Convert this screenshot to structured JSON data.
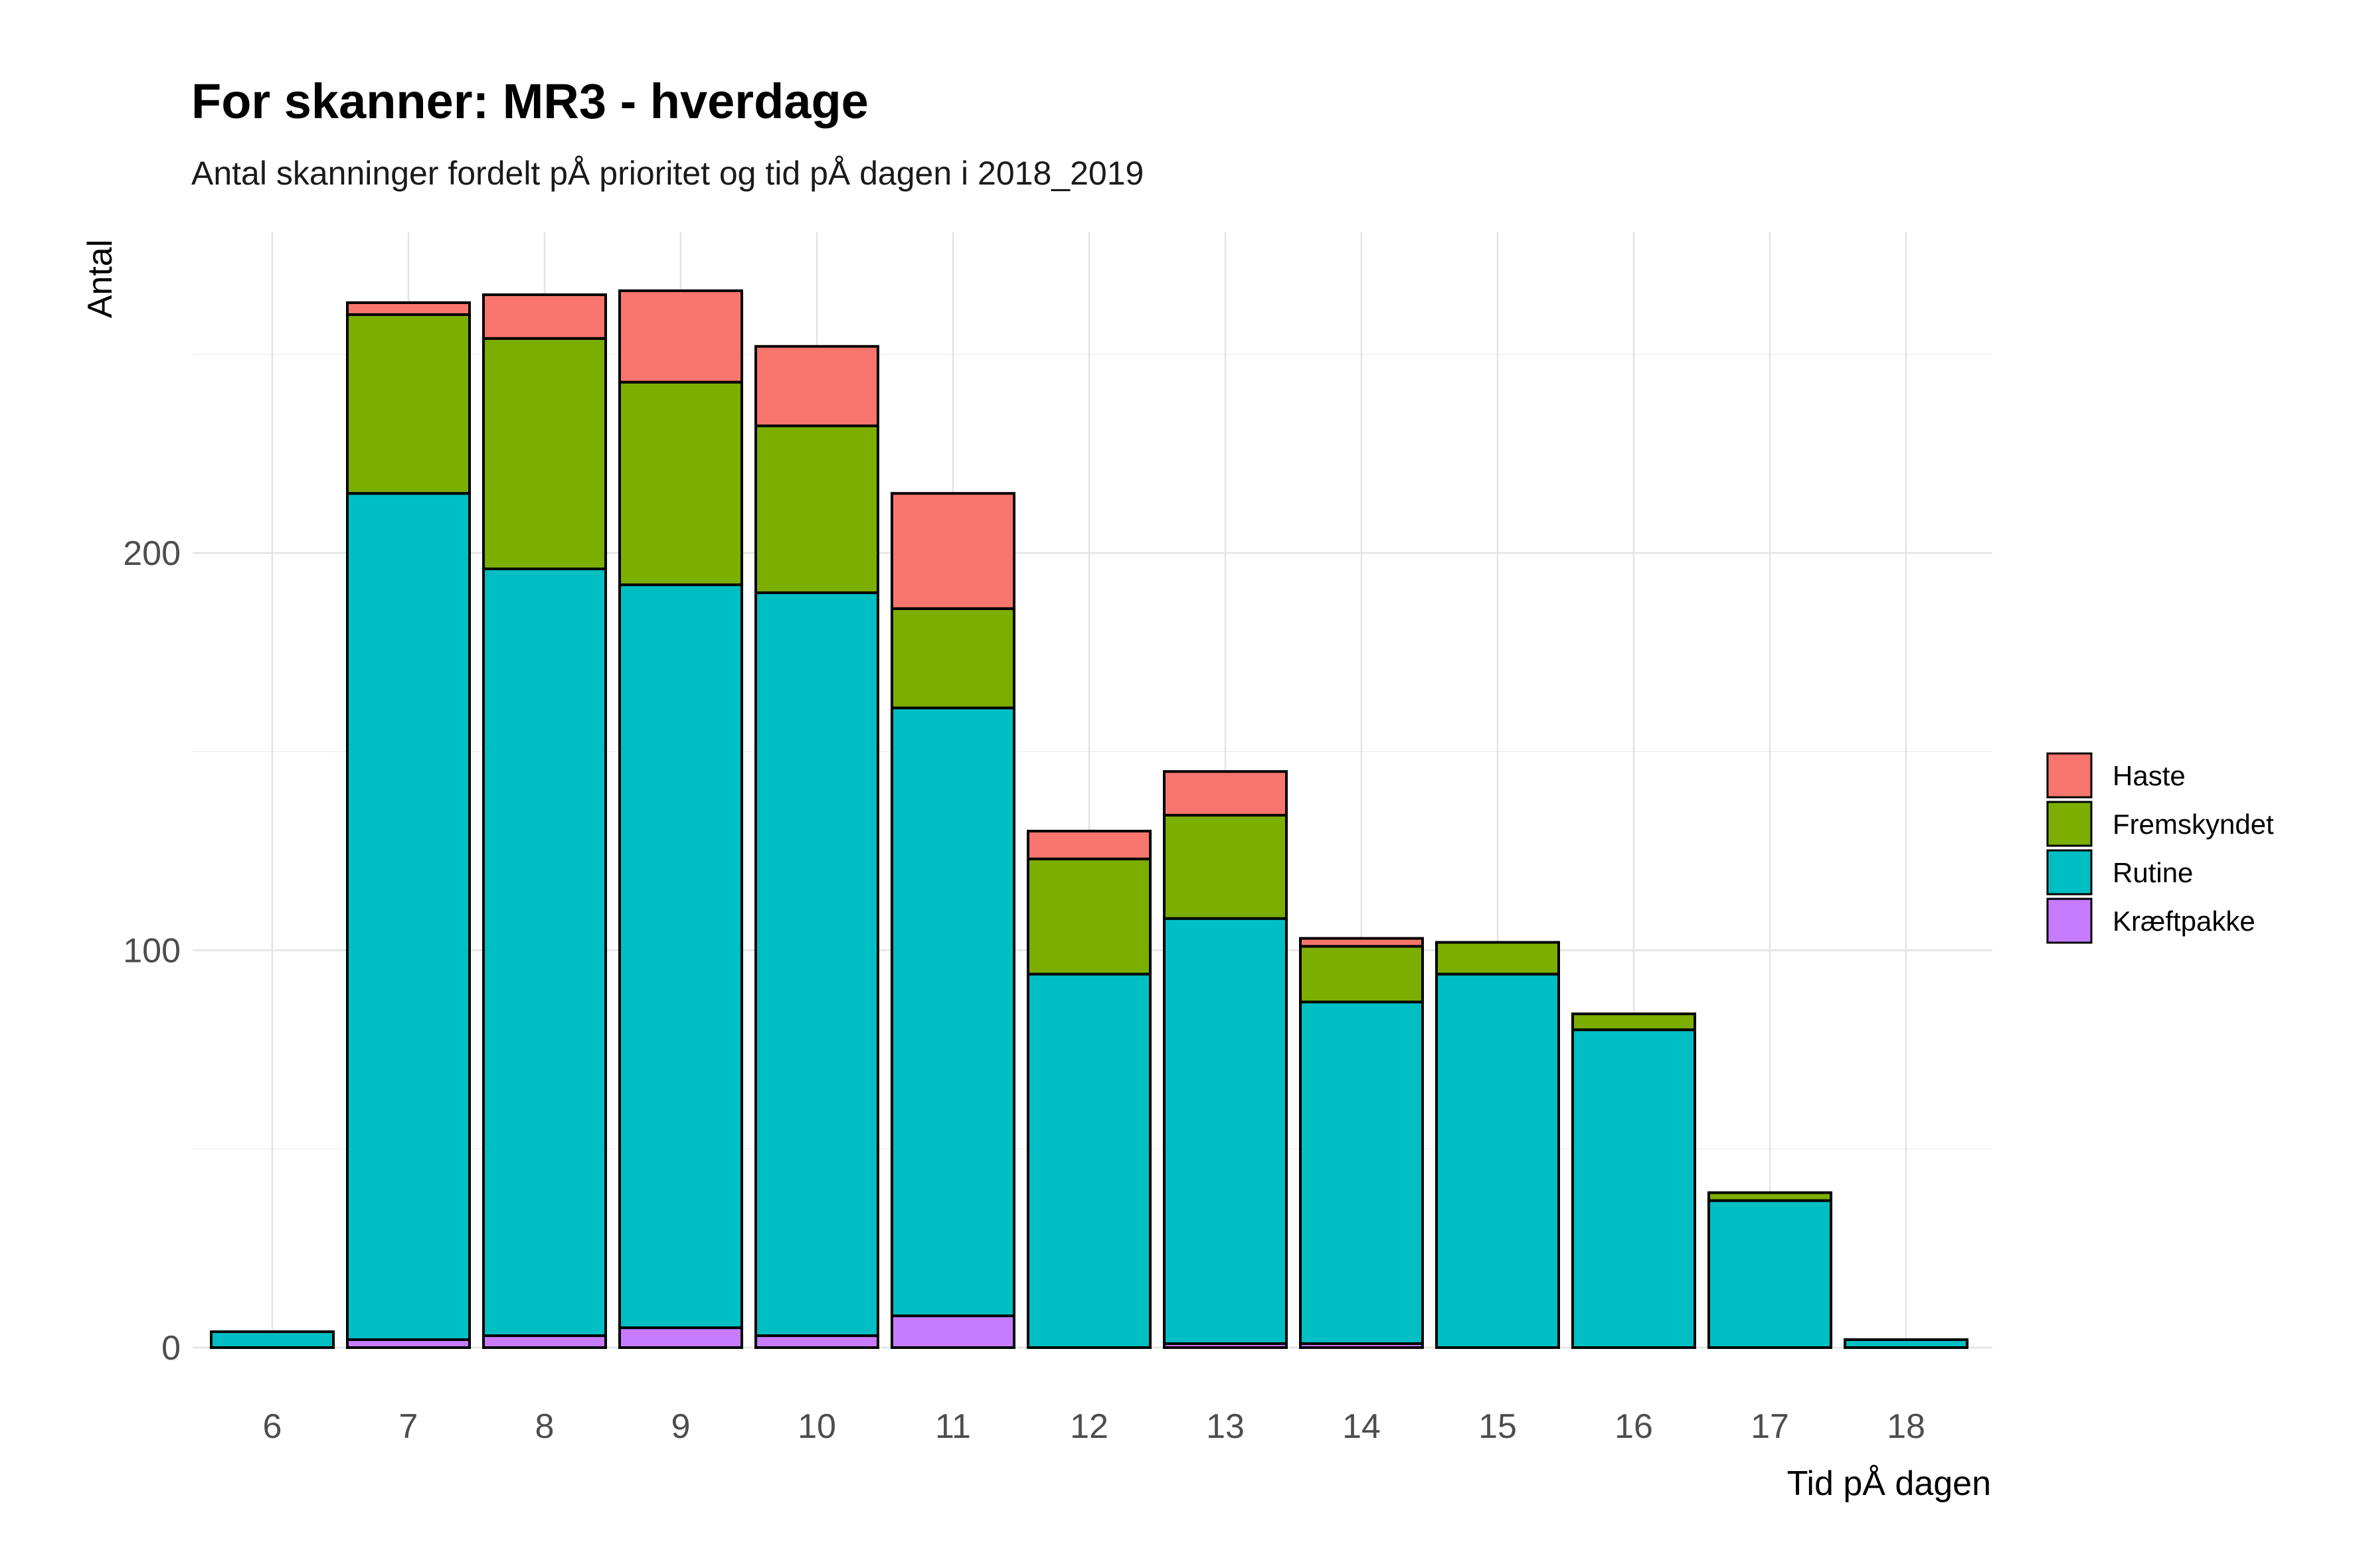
{
  "chart_data": {
    "type": "bar",
    "stacked": true,
    "title": "For skanner: MR3 - hverdage",
    "subtitle": "Antal skanninger fordelt pÅ prioritet og tid pÅ dagen i 2018_2019",
    "xlabel": "Tid pÅ dagen",
    "ylabel": "Antal",
    "categories": [
      "6",
      "7",
      "8",
      "9",
      "10",
      "11",
      "12",
      "13",
      "14",
      "15",
      "16",
      "17",
      "18"
    ],
    "ylim": [
      0,
      262
    ],
    "yticks": [
      0,
      100,
      200
    ],
    "grid": true,
    "legend_position": "right",
    "stack_order_bottom_to_top": [
      "Kræftpakke",
      "Rutine",
      "Fremskyndet",
      "Haste"
    ],
    "series": [
      {
        "name": "Haste",
        "color": "#F8766D",
        "values": [
          0,
          3,
          11,
          23,
          20,
          29,
          7,
          11,
          2,
          0,
          0,
          0,
          0
        ]
      },
      {
        "name": "Fremskyndet",
        "color": "#7CAE00",
        "values": [
          0,
          45,
          58,
          51,
          42,
          25,
          29,
          26,
          14,
          8,
          4,
          2,
          0
        ]
      },
      {
        "name": "Rutine",
        "color": "#00BFC4",
        "values": [
          4,
          213,
          193,
          187,
          187,
          153,
          94,
          107,
          86,
          94,
          80,
          37,
          2
        ]
      },
      {
        "name": "Kræftpakke",
        "color": "#C77CFF",
        "values": [
          0,
          2,
          3,
          5,
          3,
          8,
          0,
          1,
          1,
          0,
          0,
          0,
          0
        ]
      }
    ]
  }
}
